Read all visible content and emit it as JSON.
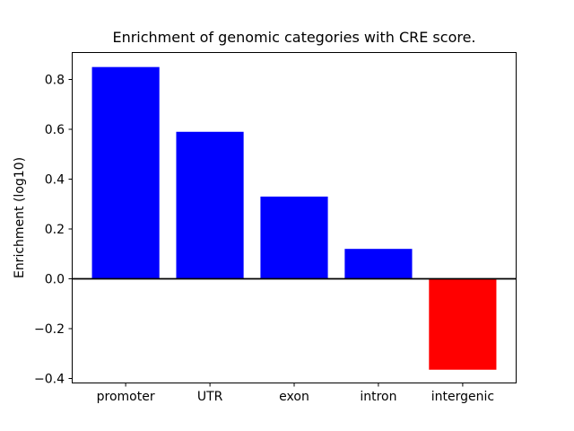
{
  "figure": {
    "background_color": "#ffffff",
    "axes_edge_color": "#000000",
    "zero_line_color": "#000000"
  },
  "chart_data": {
    "type": "bar",
    "title": "Enrichment of genomic categories with CRE score.",
    "xlabel": "",
    "ylabel": "Enrichment (log10)",
    "categories": [
      "promoter",
      "UTR",
      "exon",
      "intron",
      "intergenic"
    ],
    "values": [
      0.85,
      0.59,
      0.33,
      0.12,
      -0.365
    ],
    "bar_colors": [
      "#0000ff",
      "#0000ff",
      "#0000ff",
      "#0000ff",
      "#ff0000"
    ],
    "positive_color": "#0000ff",
    "negative_color": "#ff0000",
    "yticks": [
      0.8,
      0.6,
      0.4,
      0.2,
      0.0,
      -0.2,
      -0.4
    ],
    "ytick_labels": [
      "0.8",
      "0.6",
      "0.4",
      "0.2",
      "0.0",
      "−0.2",
      "−0.4"
    ],
    "ylim": [
      -0.42,
      0.91
    ],
    "xlim": [
      -0.64,
      4.64
    ],
    "bar_width": 0.8,
    "zero_line": true,
    "grid": false,
    "legend": null
  }
}
